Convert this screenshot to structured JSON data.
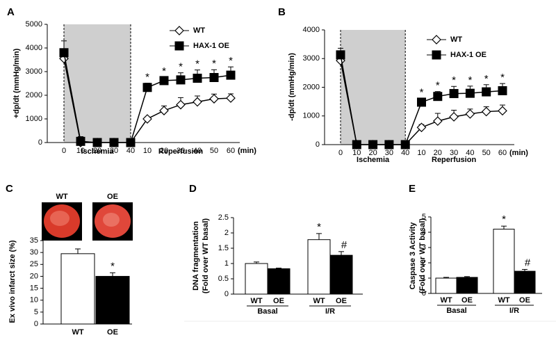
{
  "chart_data": [
    {
      "type": "line",
      "panel": "A",
      "ylabel": "+dp/dt (mmHg/min)",
      "categories": [
        "0",
        "10",
        "20",
        "30",
        "40",
        "10",
        "20",
        "30",
        "40",
        "50",
        "60"
      ],
      "x_unit": "(min)",
      "x_groups": [
        "Ischemia",
        "Reperfusion"
      ],
      "ylim": [
        0,
        5000
      ],
      "yticks": [
        0,
        1000,
        2000,
        3000,
        4000,
        5000
      ],
      "series": [
        {
          "name": "WT",
          "color": "#ffffff",
          "marker": "diamond",
          "values": [
            3550,
            0,
            0,
            0,
            0,
            1000,
            1350,
            1600,
            1720,
            1850,
            1880
          ],
          "errors": [
            0,
            0,
            0,
            0,
            0,
            80,
            200,
            300,
            250,
            200,
            180
          ]
        },
        {
          "name": "HAX-1 OE",
          "color": "#000000",
          "marker": "square",
          "values": [
            3800,
            50,
            0,
            0,
            0,
            2330,
            2620,
            2650,
            2720,
            2750,
            2850
          ],
          "errors": [
            500,
            200,
            0,
            0,
            0,
            180,
            150,
            300,
            350,
            330,
            350
          ]
        }
      ],
      "significance": [
        null,
        null,
        null,
        null,
        null,
        "*",
        "*",
        "*",
        "*",
        "*",
        "*"
      ]
    },
    {
      "type": "line",
      "panel": "B",
      "ylabel": "-dp/dt (mmHg/min)",
      "categories": [
        "0",
        "10",
        "20",
        "30",
        "40",
        "10",
        "20",
        "30",
        "40",
        "50",
        "60"
      ],
      "x_unit": "(min)",
      "x_groups": [
        "Ischemia",
        "Reperfusion"
      ],
      "ylim": [
        0,
        4000
      ],
      "yticks": [
        0,
        1000,
        2000,
        3000,
        4000
      ],
      "series": [
        {
          "name": "WT",
          "color": "#ffffff",
          "marker": "diamond",
          "values": [
            2930,
            0,
            0,
            0,
            0,
            600,
            820,
            970,
            1070,
            1150,
            1180
          ],
          "errors": [
            0,
            0,
            0,
            0,
            0,
            100,
            270,
            230,
            170,
            170,
            200
          ]
        },
        {
          "name": "HAX-1 OE",
          "color": "#000000",
          "marker": "square",
          "values": [
            3130,
            0,
            0,
            0,
            0,
            1480,
            1680,
            1780,
            1790,
            1840,
            1880
          ],
          "errors": [
            230,
            0,
            0,
            0,
            0,
            130,
            170,
            250,
            250,
            250,
            250
          ]
        }
      ],
      "significance": [
        null,
        null,
        null,
        null,
        null,
        "*",
        "*",
        "*",
        "*",
        "*",
        "*"
      ]
    },
    {
      "type": "bar",
      "panel": "C",
      "ylabel": "Ex vivo infarct size (%)",
      "image_labels": [
        "WT",
        "OE"
      ],
      "categories": [
        "WT",
        "OE"
      ],
      "values": [
        29.5,
        20
      ],
      "errors": [
        2,
        1.5
      ],
      "colors": [
        "#ffffff",
        "#000000"
      ],
      "significance": [
        null,
        "*"
      ],
      "ylim": [
        0,
        35
      ],
      "yticks": [
        0,
        5,
        10,
        15,
        20,
        25,
        30,
        35
      ]
    },
    {
      "type": "groupedbar",
      "panel": "D",
      "ylabel": [
        "DNA fragmentation",
        "(Fold over WT basal)"
      ],
      "categories": [
        "Basal",
        "I/R"
      ],
      "series": [
        {
          "name": "WT",
          "color": "#ffffff",
          "values": [
            1.0,
            1.78
          ],
          "errors": [
            0.05,
            0.2
          ],
          "significance": [
            null,
            "*"
          ]
        },
        {
          "name": "OE",
          "color": "#000000",
          "values": [
            0.83,
            1.27
          ],
          "errors": [
            0.02,
            0.12
          ],
          "significance": [
            null,
            "#"
          ]
        }
      ],
      "ylim": [
        0,
        2.5
      ],
      "yticks": [
        0,
        0.5,
        1,
        1.5,
        2,
        2.5
      ]
    },
    {
      "type": "groupedbar",
      "panel": "E",
      "ylabel": [
        "Caspase 3 Activity",
        "(Fold over WT basal)"
      ],
      "categories": [
        "Basal",
        "I/R"
      ],
      "series": [
        {
          "name": "WT",
          "color": "#ffffff",
          "values": [
            1.0,
            4.2
          ],
          "errors": [
            0.05,
            0.2
          ],
          "significance": [
            null,
            "*"
          ]
        },
        {
          "name": "OE",
          "color": "#000000",
          "values": [
            1.05,
            1.45
          ],
          "errors": [
            0.05,
            0.12
          ],
          "significance": [
            null,
            "#"
          ]
        }
      ],
      "ylim": [
        0,
        5
      ],
      "yticks": [
        0,
        1,
        2,
        3,
        4,
        5
      ]
    }
  ]
}
